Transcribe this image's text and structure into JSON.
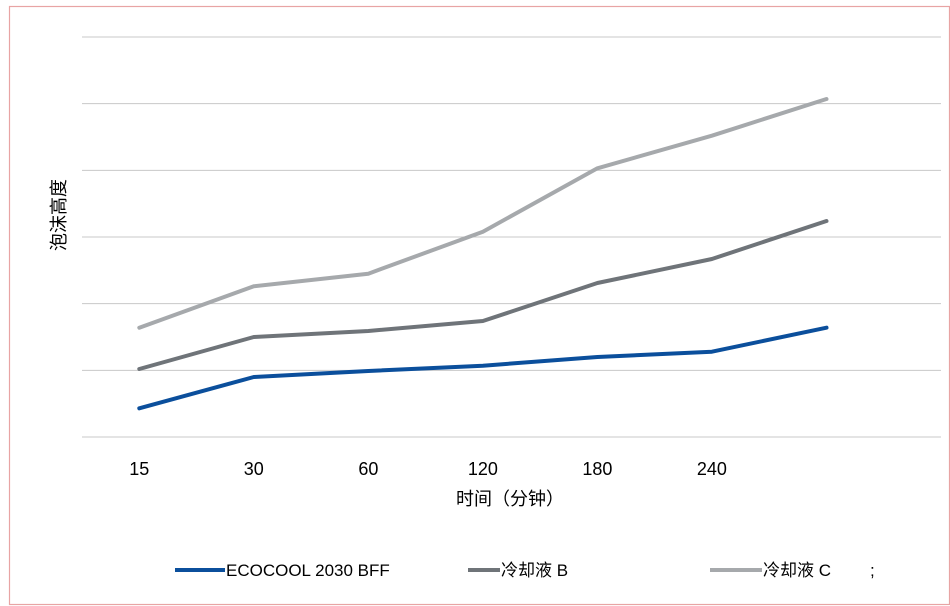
{
  "chart_data": {
    "type": "line",
    "title": "",
    "xlabel": "时间（分钟）",
    "ylabel": "泡沫高度",
    "categories": [
      "15",
      "30",
      "60",
      "120",
      "180",
      "240",
      ""
    ],
    "ylim": [
      0,
      6
    ],
    "grid": true,
    "y_tick_labels": false,
    "legend_position": "bottom",
    "series": [
      {
        "name": "ECOCOOL 2030 BFF",
        "color": "#0b4f9c",
        "values": [
          0.43,
          0.9,
          0.99,
          1.07,
          1.2,
          1.28,
          1.64
        ]
      },
      {
        "name": "冷却液 B",
        "color": "#6f7479",
        "values": [
          1.02,
          1.5,
          1.59,
          1.74,
          2.31,
          2.67,
          3.24
        ]
      },
      {
        "name": "冷却液 C",
        "color": "#a6a9ac",
        "values": [
          1.64,
          2.26,
          2.45,
          3.08,
          4.03,
          4.52,
          5.07
        ]
      }
    ],
    "legend_extra_mark": ";"
  }
}
